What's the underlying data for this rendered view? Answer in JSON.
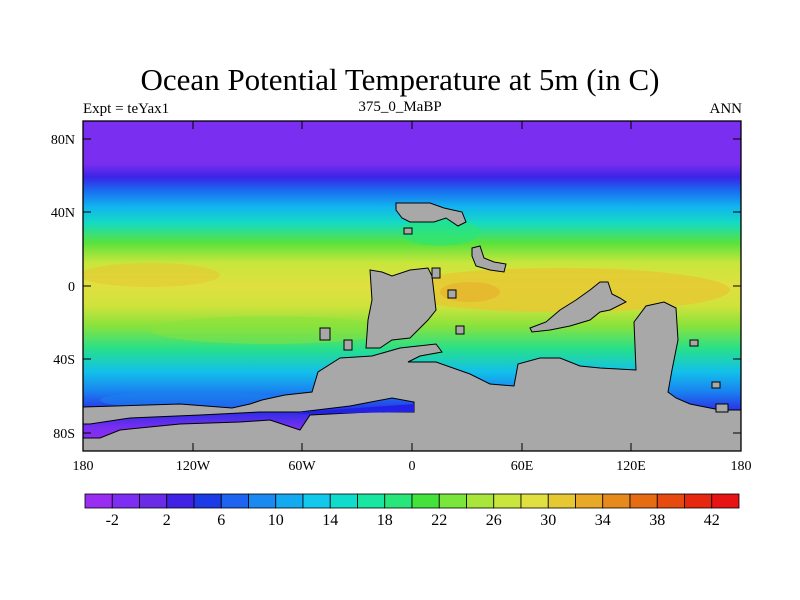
{
  "title": "Ocean Potential Temperature at 5m (in C)",
  "subtitle_left": "Expt = teYax1",
  "subtitle_center": "375_0_MaBP",
  "subtitle_right": "ANN",
  "lat_ticks": [
    "80N",
    "40N",
    "0",
    "40S",
    "80S"
  ],
  "lon_ticks": [
    "180",
    "120W",
    "60W",
    "0",
    "60E",
    "120E",
    "180"
  ],
  "legend": {
    "labels": [
      "-2",
      "2",
      "6",
      "10",
      "14",
      "18",
      "22",
      "26",
      "30",
      "34",
      "38",
      "42"
    ],
    "colors": [
      "#9a2df2",
      "#7d2ef2",
      "#6a2ae6",
      "#4022e6",
      "#1c3be6",
      "#1e64f0",
      "#1a8af0",
      "#15aaf0",
      "#12c8ec",
      "#10dccc",
      "#19e6a0",
      "#28e67a",
      "#46e23c",
      "#7ae63c",
      "#a8e63c",
      "#c8e63c",
      "#e0e040",
      "#e6c832",
      "#e8a828",
      "#e68a1c",
      "#e66c14",
      "#e64a0e",
      "#e62810",
      "#e61414"
    ]
  },
  "colors": {
    "land": "#a8a8a8",
    "background": "#ffffff"
  }
}
